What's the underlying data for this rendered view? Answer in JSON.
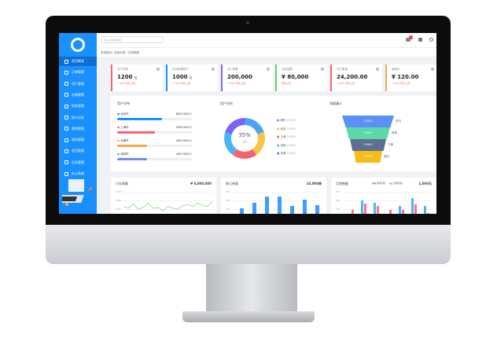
{
  "sidebar": {
    "items": [
      {
        "label": "首页概览",
        "icon": "home-icon"
      },
      {
        "label": "订单管理",
        "icon": "file-icon"
      },
      {
        "label": "用户管理",
        "icon": "user-icon"
      },
      {
        "label": "仓储管理",
        "icon": "box-icon"
      },
      {
        "label": "财务管理",
        "icon": "calculator-icon"
      },
      {
        "label": "统计分析",
        "icon": "chart-icon"
      },
      {
        "label": "营销管理",
        "icon": "badge-icon"
      },
      {
        "label": "服务管理",
        "icon": "gear-icon"
      },
      {
        "label": "会员管理",
        "icon": "bag-icon"
      },
      {
        "label": "后台管理",
        "icon": "monitor-icon"
      },
      {
        "label": "办公系统",
        "icon": "desktop-icon"
      }
    ]
  },
  "header": {
    "search_placeholder": "输入搜索关键词",
    "notification_count": "6"
  },
  "breadcrumb": "系统首页 / 信息列表 / 日常数据",
  "cards": [
    {
      "label": "用户总数",
      "value": "1200",
      "unit": "位",
      "sub": "↑ 10% 环比上周",
      "color": "#f5646e"
    },
    {
      "label": "本月新增用户",
      "value": "1000",
      "unit": "位",
      "sub": "↑ 10% 环比上周",
      "color": "#1890ff"
    },
    {
      "label": "总订单数",
      "value": "200,000",
      "unit": "",
      "sub": "↑ 10% 环比上周",
      "color": "#8a63f5"
    },
    {
      "label": "总收益额",
      "value": "¥ 80,000",
      "unit": "",
      "sub": "环比上周",
      "color": "#5ad36d"
    },
    {
      "label": "总订单量",
      "value": "24,200.00",
      "unit": "",
      "sub": "↓ 20% 环比上周",
      "color": "#f5646e"
    },
    {
      "label": "客单价",
      "value": "¥ 120.00",
      "unit": "",
      "sub": "↑ 10% 环比上周",
      "color": "#f5a54a"
    }
  ],
  "progress": {
    "title": "用户分布",
    "items": [
      {
        "label": "北京市",
        "value": "600/1000人",
        "pct": 60,
        "color": "#1890ff"
      },
      {
        "label": "上海市",
        "value": "500/1000人",
        "pct": 50,
        "color": "#f5646e"
      },
      {
        "label": "天津市",
        "value": "400/1000人",
        "pct": 40,
        "color": "#f5a54a"
      },
      {
        "label": "深圳市",
        "value": "400/1000人",
        "pct": 40,
        "color": "#6a8ff5"
      }
    ]
  },
  "chart_data": [
    {
      "type": "pie",
      "title": "用户分析",
      "center_value": "35%",
      "center_label": "占比",
      "slices": [
        {
          "name": "海外",
          "value": 10000,
          "color": "#4aa3f5"
        },
        {
          "name": "北京",
          "value": 10000,
          "color": "#fbc244"
        },
        {
          "name": "上海",
          "value": 10000,
          "color": "#f5646e"
        },
        {
          "name": "深圳",
          "value": 10000,
          "color": "#4ab5f5"
        },
        {
          "name": "天津",
          "value": 10000,
          "color": "#7a63f5"
        }
      ]
    },
    {
      "type": "funnel",
      "title": "流量漏斗",
      "stages": [
        {
          "label": "访问",
          "value": "20000",
          "color": "#5b8ff9"
        },
        {
          "label": "咨询",
          "value": "20000",
          "color": "#5ad8a6"
        },
        {
          "label": "下单",
          "value": "20000",
          "color": "#5d7092"
        },
        {
          "label": "成交",
          "value": "10000",
          "color": "#f6bd16"
        }
      ]
    },
    {
      "type": "line",
      "title": "日交易额",
      "total": "¥ 8,000,000",
      "yticks": [
        "5000",
        "4000",
        "3000"
      ],
      "values": [
        3300,
        3100,
        3600,
        3000,
        3200,
        3700,
        3100,
        3200,
        2800,
        3300,
        3100,
        3000,
        3400,
        3500,
        3300,
        3700,
        3400,
        3300,
        3900
      ],
      "color": "#8fd38a"
    },
    {
      "type": "bar",
      "title": "周订单量",
      "total": "10,000单",
      "yticks": [
        "900",
        "600",
        "300"
      ],
      "values": [
        350,
        560,
        800,
        800,
        450,
        700,
        490
      ],
      "color": "#3c9cff"
    },
    {
      "type": "bar",
      "title": "月销售额",
      "total": "1,000元",
      "yticks": [
        "900",
        "600",
        "300"
      ],
      "series": [
        {
          "name": "本月销售额",
          "values": [
            0,
            650,
            560,
            0,
            450,
            760,
            450
          ],
          "color": "#4ab5f5"
        },
        {
          "name": "上月销售额",
          "values": [
            300,
            540,
            460,
            310,
            300,
            520,
            170
          ],
          "color": "#f5748e"
        }
      ]
    }
  ]
}
